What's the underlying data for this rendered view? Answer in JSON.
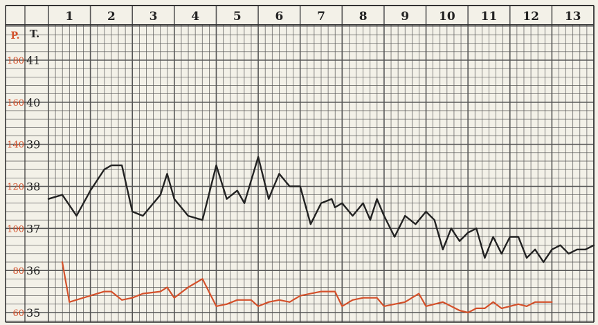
{
  "chart_data": {
    "type": "line",
    "x_axis": {
      "label": "",
      "categories": [
        "1",
        "2",
        "3",
        "4",
        "5",
        "6",
        "7",
        "8",
        "9",
        "10",
        "11",
        "12",
        "13"
      ]
    },
    "y_axes": {
      "temperature": {
        "header": "T.",
        "ticks": [
          "41",
          "40",
          "39",
          "38",
          "37",
          "36",
          "35"
        ],
        "range": [
          35,
          41
        ]
      },
      "pulse": {
        "header": "P.",
        "ticks": [
          "180",
          "160",
          "140",
          "120",
          "100",
          "80",
          "60"
        ],
        "range": [
          60,
          180
        ]
      }
    },
    "grid": true,
    "series": [
      {
        "axis": "temperature",
        "color": "#222222",
        "x": [
          1.0,
          1.33,
          1.67,
          2.0,
          2.33,
          2.5,
          2.75,
          3.0,
          3.25,
          3.67,
          3.83,
          4.0,
          4.33,
          4.67,
          5.0,
          5.25,
          5.5,
          5.67,
          6.0,
          6.25,
          6.33,
          6.5,
          6.75,
          7.0,
          7.25,
          7.5,
          7.75,
          7.83,
          8.0,
          8.25,
          8.5,
          8.67,
          8.83,
          9.0,
          9.25,
          9.5,
          9.75,
          10.0,
          10.2,
          10.4,
          10.6,
          10.8,
          11.0,
          11.2,
          11.4,
          11.6,
          11.8,
          12.0,
          12.2,
          12.4,
          12.6,
          12.8,
          13.0,
          13.2,
          13.4,
          13.6,
          13.8,
          14.0
        ],
        "y": [
          37.7,
          37.8,
          37.3,
          37.9,
          38.4,
          38.5,
          38.5,
          37.4,
          37.3,
          37.8,
          38.3,
          37.7,
          37.3,
          37.2,
          38.5,
          37.7,
          37.9,
          37.6,
          38.7,
          37.7,
          37.9,
          38.3,
          38.0,
          38.0,
          37.1,
          37.6,
          37.7,
          37.5,
          37.6,
          37.3,
          37.6,
          37.2,
          37.7,
          37.3,
          36.8,
          37.3,
          37.1,
          37.4,
          37.2,
          36.5,
          37.0,
          36.7,
          36.9,
          37.0,
          36.3,
          36.8,
          36.4,
          36.8,
          36.8,
          36.3,
          36.5,
          36.2,
          36.5,
          36.6,
          36.4,
          36.5,
          36.5,
          36.6
        ]
      },
      {
        "axis": "pulse",
        "color": "#d4502a",
        "x": [
          1.33,
          1.5,
          1.83,
          2.33,
          2.5,
          2.75,
          3.0,
          3.25,
          3.67,
          3.83,
          4.0,
          4.33,
          4.67,
          5.0,
          5.25,
          5.5,
          5.83,
          6.0,
          6.25,
          6.5,
          6.75,
          7.0,
          7.25,
          7.5,
          7.83,
          8.0,
          8.25,
          8.5,
          8.83,
          9.0,
          9.25,
          9.5,
          9.83,
          10.0,
          10.2,
          10.4,
          10.6,
          10.8,
          11.0,
          11.2,
          11.4,
          11.6,
          11.8,
          12.0,
          12.2,
          12.4,
          12.6,
          12.8,
          13.0
        ],
        "y": [
          84,
          65,
          67,
          70,
          70,
          66,
          67,
          69,
          70,
          72,
          67,
          72,
          76,
          63,
          64,
          66,
          66,
          63,
          65,
          66,
          65,
          68,
          69,
          70,
          70,
          63,
          66,
          67,
          67,
          63,
          64,
          65,
          69,
          63,
          64,
          65,
          63,
          61,
          60,
          62,
          62,
          65,
          62,
          63,
          64,
          63,
          65,
          65,
          65
        ]
      }
    ]
  }
}
